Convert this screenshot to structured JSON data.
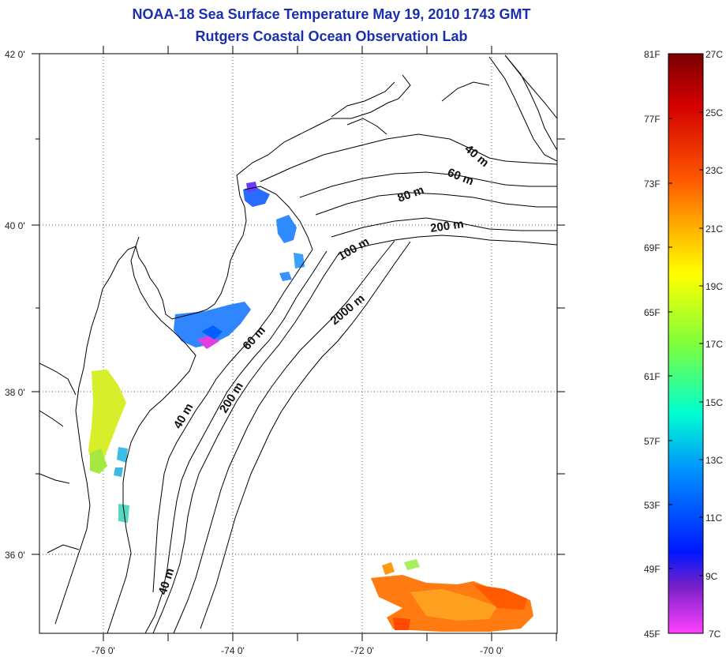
{
  "header": {
    "title": "NOAA-18 Sea Surface Temperature May 19, 2010 1743 GMT",
    "subtitle": "Rutgers Coastal Ocean Observation Lab"
  },
  "map": {
    "lat_labels": [
      "42 0'",
      "40 0'",
      "38 0'",
      "36 0'"
    ],
    "lon_labels": [
      "-76 0'",
      "-74 0'",
      "-72 0'",
      "-70 0'"
    ],
    "isobath_labels": [
      "40 m",
      "60 m",
      "80 m",
      "200 m",
      "100 m",
      "2000 m",
      "60 m",
      "40 m",
      "200 m",
      "40 m"
    ],
    "grid": "dotted"
  },
  "colorbar": {
    "fahrenheit_labels": [
      "81F",
      "77F",
      "73F",
      "69F",
      "65F",
      "61F",
      "57F",
      "53F",
      "49F",
      "45F"
    ],
    "celsius_labels": [
      "27C",
      "25C",
      "23C",
      "21C",
      "19C",
      "17C",
      "15C",
      "13C",
      "11C",
      "9C",
      "7C"
    ],
    "colors": [
      "#7a0000",
      "#d40000",
      "#ff5a00",
      "#ffc800",
      "#ffff00",
      "#7fff3a",
      "#00ffd0",
      "#0090ff",
      "#0018ff",
      "#7a20c8",
      "#ff40ff"
    ]
  }
}
